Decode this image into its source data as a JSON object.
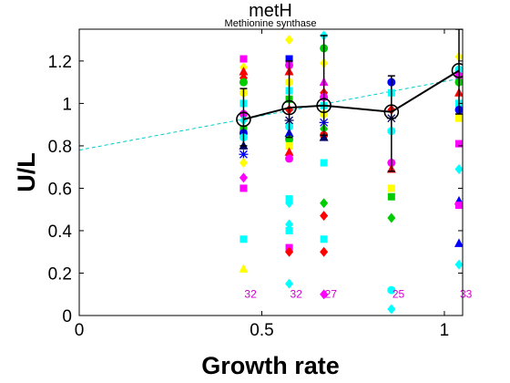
{
  "chart_data": {
    "type": "scatter",
    "title": "metH",
    "subtitle": "Methionine synthase",
    "xlabel": "Growth rate",
    "ylabel": "U/L",
    "xlim": [
      0,
      1.05
    ],
    "ylim": [
      0,
      1.35
    ],
    "x_ticks": [
      {
        "value": 0,
        "label": "0"
      },
      {
        "value": 0.5,
        "label": "0.5"
      },
      {
        "value": 1,
        "label": "1"
      }
    ],
    "y_ticks": [
      {
        "value": 0,
        "label": "0"
      },
      {
        "value": 0.2,
        "label": "0.2"
      },
      {
        "value": 0.4,
        "label": "0.4"
      },
      {
        "value": 0.6,
        "label": "0.6"
      },
      {
        "value": 0.8,
        "label": "0.8"
      },
      {
        "value": 1,
        "label": "1"
      },
      {
        "value": 1.2,
        "label": "1.2"
      }
    ],
    "grid": false,
    "trend_line": {
      "color": "#00cccc",
      "x": [
        0,
        1.05
      ],
      "y": [
        0.78,
        1.12
      ]
    },
    "mean_series": {
      "color": "#000000",
      "x": [
        0.45,
        0.575,
        0.67,
        0.855,
        1.04
      ],
      "y": [
        0.925,
        0.98,
        0.99,
        0.96,
        1.155
      ],
      "err_low": [
        0.8,
        0.84,
        0.85,
        0.68,
        0.95
      ],
      "err_high": [
        1.07,
        1.2,
        1.32,
        1.13,
        1.35
      ]
    },
    "count_labels": [
      {
        "x": 0.45,
        "y": 0.1,
        "text": "32"
      },
      {
        "x": 0.575,
        "y": 0.1,
        "text": "32"
      },
      {
        "x": 0.67,
        "y": 0.1,
        "text": "27"
      },
      {
        "x": 0.855,
        "y": 0.1,
        "text": "25"
      },
      {
        "x": 1.04,
        "y": 0.1,
        "text": "33"
      }
    ],
    "points": [
      {
        "x": 0.45,
        "y": 1.21,
        "c": "#ff00ff",
        "s": "square"
      },
      {
        "x": 0.45,
        "y": 1.17,
        "c": "#ffff00",
        "s": "diamond"
      },
      {
        "x": 0.45,
        "y": 1.15,
        "c": "#ff0000",
        "s": "triangle"
      },
      {
        "x": 0.45,
        "y": 1.12,
        "c": "#ff0000",
        "s": "diamond"
      },
      {
        "x": 0.45,
        "y": 1.1,
        "c": "#00cc00",
        "s": "circle"
      },
      {
        "x": 0.45,
        "y": 1.05,
        "c": "#ffff00",
        "s": "circle"
      },
      {
        "x": 0.45,
        "y": 1.0,
        "c": "#00ffff",
        "s": "square"
      },
      {
        "x": 0.45,
        "y": 0.95,
        "c": "#ff00ff",
        "s": "circle"
      },
      {
        "x": 0.45,
        "y": 0.92,
        "c": "#00ffff",
        "s": "diamond"
      },
      {
        "x": 0.45,
        "y": 0.88,
        "c": "#00cc00",
        "s": "square"
      },
      {
        "x": 0.45,
        "y": 0.86,
        "c": "#0000ff",
        "s": "circle"
      },
      {
        "x": 0.45,
        "y": 0.84,
        "c": "#00ffff",
        "s": "circle"
      },
      {
        "x": 0.45,
        "y": 0.8,
        "c": "#000066",
        "s": "triangle"
      },
      {
        "x": 0.45,
        "y": 0.76,
        "c": "#0000ff",
        "s": "star"
      },
      {
        "x": 0.45,
        "y": 0.72,
        "c": "#ffff00",
        "s": "diamond"
      },
      {
        "x": 0.45,
        "y": 0.65,
        "c": "#ff00ff",
        "s": "diamond"
      },
      {
        "x": 0.45,
        "y": 0.6,
        "c": "#ff00ff",
        "s": "square"
      },
      {
        "x": 0.45,
        "y": 0.36,
        "c": "#00ffff",
        "s": "square"
      },
      {
        "x": 0.45,
        "y": 0.22,
        "c": "#ffff00",
        "s": "triangle"
      },
      {
        "x": 0.575,
        "y": 1.3,
        "c": "#ffff00",
        "s": "diamond"
      },
      {
        "x": 0.575,
        "y": 1.21,
        "c": "#0000ff",
        "s": "square"
      },
      {
        "x": 0.575,
        "y": 1.18,
        "c": "#ff00ff",
        "s": "circle"
      },
      {
        "x": 0.575,
        "y": 1.15,
        "c": "#ff0000",
        "s": "triangle"
      },
      {
        "x": 0.575,
        "y": 1.1,
        "c": "#ffff00",
        "s": "circle"
      },
      {
        "x": 0.575,
        "y": 1.06,
        "c": "#00ffff",
        "s": "square"
      },
      {
        "x": 0.575,
        "y": 1.02,
        "c": "#00cc00",
        "s": "square"
      },
      {
        "x": 0.575,
        "y": 0.97,
        "c": "#ff0000",
        "s": "diamond"
      },
      {
        "x": 0.575,
        "y": 0.92,
        "c": "#000066",
        "s": "star"
      },
      {
        "x": 0.575,
        "y": 0.89,
        "c": "#00ffff",
        "s": "circle"
      },
      {
        "x": 0.575,
        "y": 0.86,
        "c": "#0000ff",
        "s": "triangle"
      },
      {
        "x": 0.575,
        "y": 0.83,
        "c": "#00cc00",
        "s": "circle"
      },
      {
        "x": 0.575,
        "y": 0.8,
        "c": "#ffff00",
        "s": "square"
      },
      {
        "x": 0.575,
        "y": 0.77,
        "c": "#ff0000",
        "s": "triangle"
      },
      {
        "x": 0.575,
        "y": 0.74,
        "c": "#ff00ff",
        "s": "circle"
      },
      {
        "x": 0.575,
        "y": 0.55,
        "c": "#00ffff",
        "s": "square"
      },
      {
        "x": 0.575,
        "y": 0.53,
        "c": "#00ffff",
        "s": "diamond"
      },
      {
        "x": 0.575,
        "y": 0.43,
        "c": "#00ffff",
        "s": "diamond"
      },
      {
        "x": 0.575,
        "y": 0.4,
        "c": "#00ffff",
        "s": "square"
      },
      {
        "x": 0.575,
        "y": 0.32,
        "c": "#ff00ff",
        "s": "square"
      },
      {
        "x": 0.575,
        "y": 0.3,
        "c": "#ff0000",
        "s": "diamond"
      },
      {
        "x": 0.575,
        "y": 0.15,
        "c": "#00ffff",
        "s": "diamond"
      },
      {
        "x": 0.67,
        "y": 1.32,
        "c": "#00ffff",
        "s": "diamond"
      },
      {
        "x": 0.67,
        "y": 1.26,
        "c": "#00cc00",
        "s": "circle"
      },
      {
        "x": 0.67,
        "y": 1.19,
        "c": "#ffff00",
        "s": "diamond"
      },
      {
        "x": 0.67,
        "y": 1.1,
        "c": "#ff00ff",
        "s": "triangle"
      },
      {
        "x": 0.67,
        "y": 1.05,
        "c": "#ff0000",
        "s": "diamond"
      },
      {
        "x": 0.67,
        "y": 1.03,
        "c": "#ff00ff",
        "s": "circle"
      },
      {
        "x": 0.67,
        "y": 0.99,
        "c": "#00ffff",
        "s": "square"
      },
      {
        "x": 0.67,
        "y": 0.95,
        "c": "#ffff00",
        "s": "circle"
      },
      {
        "x": 0.67,
        "y": 0.91,
        "c": "#0000ff",
        "s": "star"
      },
      {
        "x": 0.67,
        "y": 0.88,
        "c": "#00cc00",
        "s": "diamond"
      },
      {
        "x": 0.67,
        "y": 0.85,
        "c": "#ff0000",
        "s": "circle"
      },
      {
        "x": 0.67,
        "y": 0.84,
        "c": "#000066",
        "s": "triangle"
      },
      {
        "x": 0.67,
        "y": 0.72,
        "c": "#00ffff",
        "s": "square"
      },
      {
        "x": 0.67,
        "y": 0.53,
        "c": "#00cc00",
        "s": "diamond"
      },
      {
        "x": 0.67,
        "y": 0.47,
        "c": "#ff0000",
        "s": "diamond"
      },
      {
        "x": 0.67,
        "y": 0.36,
        "c": "#00ffff",
        "s": "square"
      },
      {
        "x": 0.67,
        "y": 0.3,
        "c": "#ff0000",
        "s": "diamond"
      },
      {
        "x": 0.67,
        "y": 0.1,
        "c": "#ff00ff",
        "s": "diamond"
      },
      {
        "x": 0.855,
        "y": 1.1,
        "c": "#0000ff",
        "s": "circle"
      },
      {
        "x": 0.855,
        "y": 1.05,
        "c": "#00ffff",
        "s": "square"
      },
      {
        "x": 0.855,
        "y": 0.97,
        "c": "#ff0000",
        "s": "diamond"
      },
      {
        "x": 0.855,
        "y": 0.93,
        "c": "#000066",
        "s": "star"
      },
      {
        "x": 0.855,
        "y": 0.87,
        "c": "#00ffff",
        "s": "circle"
      },
      {
        "x": 0.855,
        "y": 0.72,
        "c": "#ff00ff",
        "s": "circle"
      },
      {
        "x": 0.855,
        "y": 0.69,
        "c": "#ff0000",
        "s": "triangle"
      },
      {
        "x": 0.855,
        "y": 0.6,
        "c": "#ffff00",
        "s": "square"
      },
      {
        "x": 0.855,
        "y": 0.56,
        "c": "#00cc00",
        "s": "square"
      },
      {
        "x": 0.855,
        "y": 0.46,
        "c": "#00cc00",
        "s": "diamond"
      },
      {
        "x": 0.855,
        "y": 0.12,
        "c": "#00ffff",
        "s": "circle"
      },
      {
        "x": 0.855,
        "y": 0.03,
        "c": "#00ffff",
        "s": "diamond"
      },
      {
        "x": 1.04,
        "y": 1.22,
        "c": "#ffff00",
        "s": "diamond"
      },
      {
        "x": 1.04,
        "y": 1.16,
        "c": "#00ffff",
        "s": "circle"
      },
      {
        "x": 1.04,
        "y": 1.13,
        "c": "#ff00ff",
        "s": "circle"
      },
      {
        "x": 1.04,
        "y": 1.1,
        "c": "#00cc00",
        "s": "circle"
      },
      {
        "x": 1.04,
        "y": 1.05,
        "c": "#ff0000",
        "s": "triangle"
      },
      {
        "x": 1.04,
        "y": 1.0,
        "c": "#00ffff",
        "s": "square"
      },
      {
        "x": 1.04,
        "y": 0.97,
        "c": "#0000ff",
        "s": "circle"
      },
      {
        "x": 1.04,
        "y": 0.93,
        "c": "#ffff00",
        "s": "square"
      },
      {
        "x": 1.04,
        "y": 0.81,
        "c": "#ff00ff",
        "s": "square"
      },
      {
        "x": 1.04,
        "y": 0.69,
        "c": "#00ffff",
        "s": "diamond"
      },
      {
        "x": 1.04,
        "y": 0.54,
        "c": "#0000ff",
        "s": "triangle"
      },
      {
        "x": 1.04,
        "y": 0.52,
        "c": "#ff00ff",
        "s": "square"
      },
      {
        "x": 1.04,
        "y": 0.34,
        "c": "#0000ff",
        "s": "triangle"
      },
      {
        "x": 1.04,
        "y": 0.24,
        "c": "#00ffff",
        "s": "diamond"
      }
    ]
  }
}
